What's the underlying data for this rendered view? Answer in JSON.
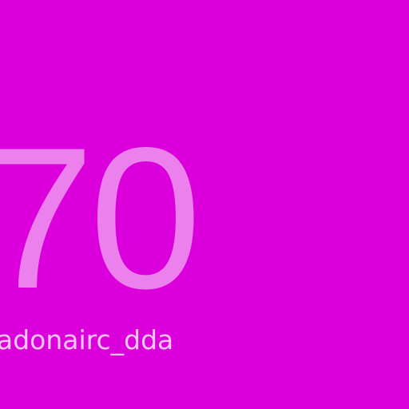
{
  "screen": {
    "value": "70",
    "caption": "adonairc_dda"
  },
  "colors": {
    "background": "#db00db",
    "number": "#ec80ec",
    "caption": "#f7c8f7"
  }
}
